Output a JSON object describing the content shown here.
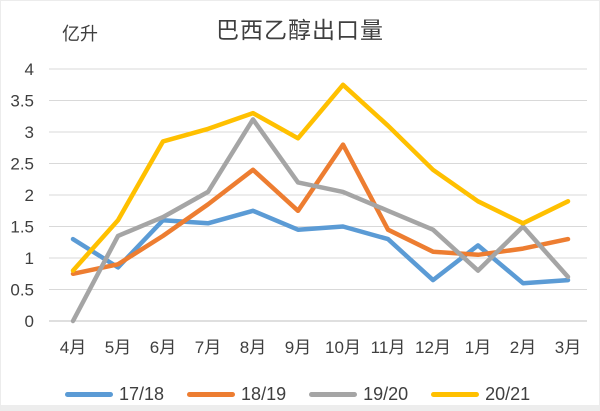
{
  "chart": {
    "title": "巴西乙醇出口量",
    "unit_label": "亿升"
  },
  "chart_data": {
    "type": "line",
    "title": "巴西乙醇出口量",
    "ylabel": "亿升",
    "xlabel": "",
    "categories": [
      "4月",
      "5月",
      "6月",
      "7月",
      "8月",
      "9月",
      "10月",
      "11月",
      "12月",
      "1月",
      "2月",
      "3月"
    ],
    "series": [
      {
        "name": "17/18",
        "color": "#5B9BD5",
        "values": [
          1.3,
          0.85,
          1.6,
          1.55,
          1.75,
          1.45,
          1.5,
          1.3,
          0.65,
          1.2,
          0.6,
          0.65
        ]
      },
      {
        "name": "18/19",
        "color": "#ED7D31",
        "values": [
          0.75,
          0.9,
          1.35,
          1.85,
          2.4,
          1.75,
          2.8,
          1.45,
          1.1,
          1.05,
          1.15,
          1.3
        ]
      },
      {
        "name": "19/20",
        "color": "#A5A5A5",
        "values": [
          0.0,
          1.35,
          1.65,
          2.05,
          3.2,
          2.2,
          2.05,
          1.75,
          1.45,
          0.8,
          1.5,
          0.7
        ]
      },
      {
        "name": "20/21",
        "color": "#FFC000",
        "values": [
          0.8,
          1.6,
          2.85,
          3.05,
          3.3,
          2.9,
          3.75,
          3.1,
          2.4,
          1.9,
          1.55,
          1.9
        ]
      }
    ],
    "ylim": [
      0,
      4
    ],
    "ytick_step": 0.5,
    "ytick_labels": [
      "0",
      "0.5",
      "1",
      "1.5",
      "2",
      "2.5",
      "3",
      "3.5",
      "4"
    ],
    "grid": true,
    "gridline_color": "#D9D9D9",
    "axisline_color": "#BFBFBF",
    "text_color": "#3f3f3f",
    "legend_position": "bottom"
  }
}
